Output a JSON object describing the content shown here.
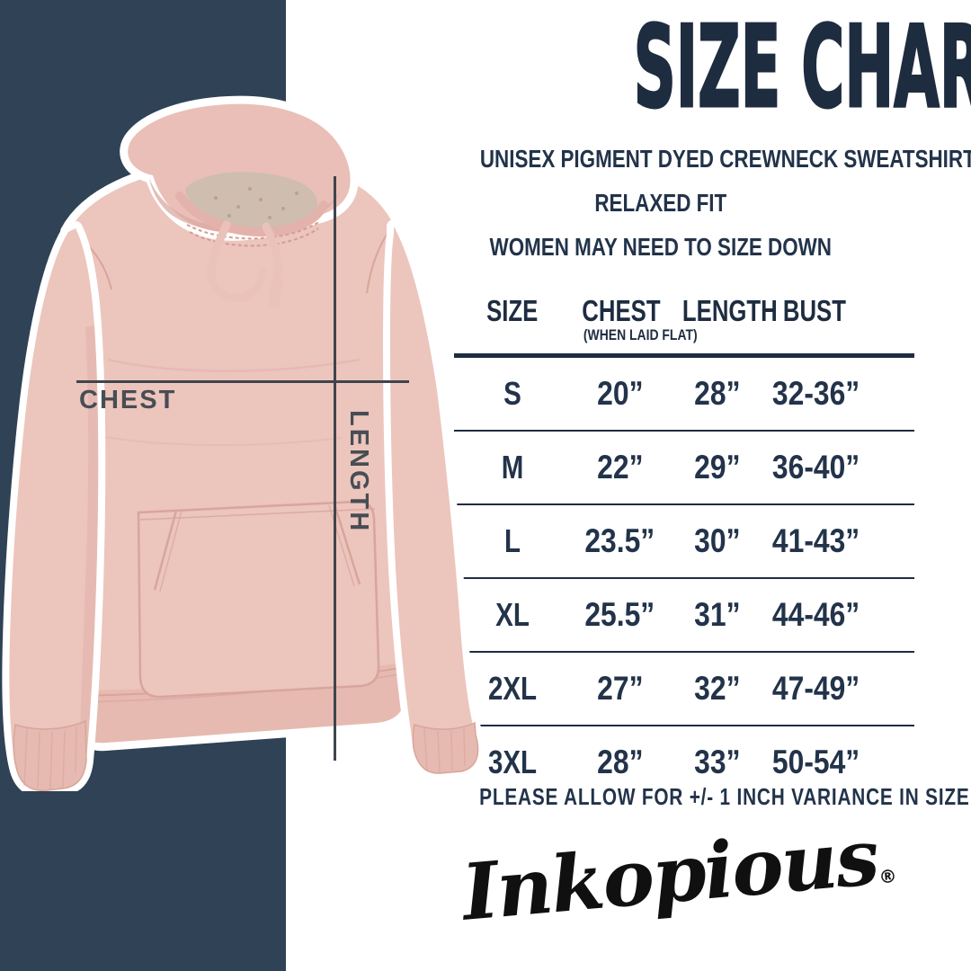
{
  "page": {
    "background": "#ffffff",
    "accent_band_color": "#2f4256",
    "navy_text_color": "#1e2c40"
  },
  "header": {
    "title": "SIZE CHART",
    "subtitle_lines": [
      "UNISEX PIGMENT DYED CREWNECK SWEATSHIRT",
      "RELAXED FIT",
      "WOMEN MAY NEED TO SIZE DOWN"
    ]
  },
  "diagram": {
    "chest_label": "CHEST",
    "length_label": "LENGTH"
  },
  "chart_data": {
    "type": "table",
    "title": "SIZE CHART",
    "columns": [
      "SIZE",
      "CHEST",
      "LENGTH",
      "BUST"
    ],
    "chest_column_note": "(WHEN LAID FLAT)",
    "rows": [
      [
        "S",
        "20”",
        "28”",
        "32-36”"
      ],
      [
        "M",
        "22”",
        "29”",
        "36-40”"
      ],
      [
        "L",
        "23.5”",
        "30”",
        "41-43”"
      ],
      [
        "XL",
        "25.5”",
        "31”",
        "44-46”"
      ],
      [
        "2XL",
        "27”",
        "32”",
        "47-49”"
      ],
      [
        "3XL",
        "28”",
        "33”",
        "50-54”"
      ]
    ]
  },
  "footnote": "PLEASE ALLOW FOR +/- 1 INCH VARIANCE IN SIZE",
  "brand": {
    "logo": "Inkopious",
    "registered": "®"
  }
}
